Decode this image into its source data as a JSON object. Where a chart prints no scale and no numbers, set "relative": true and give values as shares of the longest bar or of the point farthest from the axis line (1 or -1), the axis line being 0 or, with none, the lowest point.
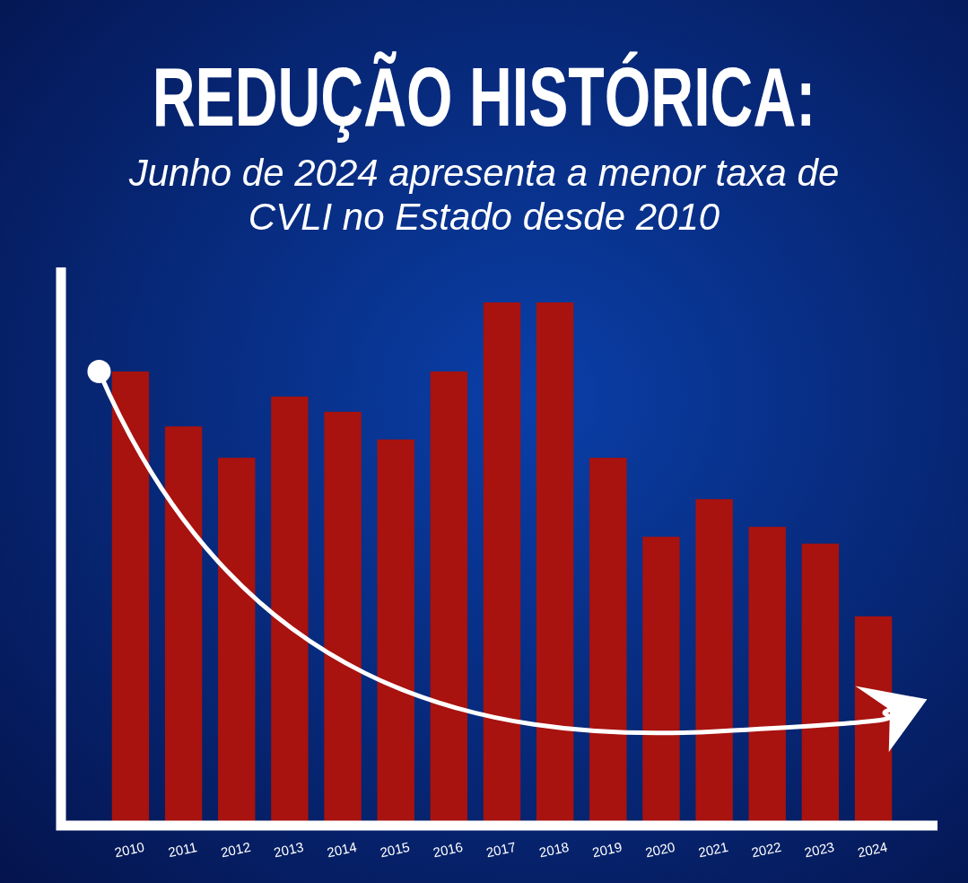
{
  "chart_data": {
    "type": "bar",
    "title": "REDUÇÃO HISTÓRICA:",
    "subtitle": "Junho de 2024 apresenta a menor taxa de CVLI no Estado desde 2010",
    "relative": true,
    "categories": [
      "2010",
      "2011",
      "2012",
      "2013",
      "2014",
      "2015",
      "2016",
      "2017",
      "2018",
      "2019",
      "2020",
      "2021",
      "2022",
      "2023",
      "2024"
    ],
    "values": [
      0.868,
      0.763,
      0.703,
      0.82,
      0.791,
      0.738,
      0.868,
      1,
      1,
      0.703,
      0.552,
      0.624,
      0.571,
      0.539,
      0.4
    ],
    "color": "#a8120f"
  }
}
